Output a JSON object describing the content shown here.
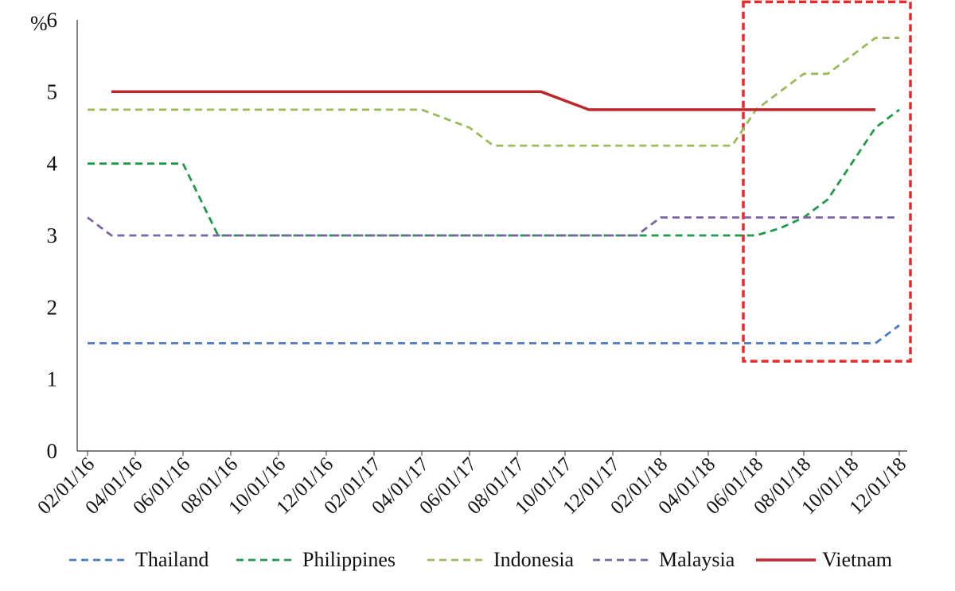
{
  "chart_data": {
    "type": "line",
    "unit_label": "%",
    "ylim": [
      0,
      6
    ],
    "y_ticks": [
      0,
      1,
      2,
      3,
      4,
      5,
      6
    ],
    "x_ticks": [
      "02/01/16",
      "04/01/16",
      "06/01/16",
      "08/01/16",
      "10/01/16",
      "12/01/16",
      "02/01/17",
      "04/01/17",
      "06/01/17",
      "08/01/17",
      "10/01/17",
      "12/01/17",
      "02/01/18",
      "04/01/18",
      "06/01/18",
      "08/01/18",
      "10/01/18",
      "12/01/18"
    ],
    "grid": false,
    "legend_position": "bottom",
    "highlight_box": {
      "x_from": "05/15/18",
      "x_to": "12/15/18",
      "y_from": 1.25,
      "y_to": 6.25,
      "color": "#e52b2b"
    },
    "series": [
      {
        "name": "Thailand",
        "color": "#4a7bbf",
        "style": "dashed",
        "points": [
          [
            "02/01/16",
            1.5
          ],
          [
            "11/01/18",
            1.5
          ],
          [
            "12/01/18",
            1.75
          ]
        ]
      },
      {
        "name": "Philippines",
        "color": "#1f9a4a",
        "style": "dashed",
        "points": [
          [
            "02/01/16",
            4.0
          ],
          [
            "06/01/16",
            4.0
          ],
          [
            "07/15/16",
            3.0
          ],
          [
            "06/01/18",
            3.0
          ],
          [
            "07/01/18",
            3.1
          ],
          [
            "08/01/18",
            3.25
          ],
          [
            "09/01/18",
            3.5
          ],
          [
            "10/01/18",
            4.0
          ],
          [
            "11/01/18",
            4.5
          ],
          [
            "12/01/18",
            4.75
          ]
        ]
      },
      {
        "name": "Indonesia",
        "color": "#9bbb59",
        "style": "dashed",
        "points": [
          [
            "02/01/16",
            4.75
          ],
          [
            "04/01/17",
            4.75
          ],
          [
            "06/01/17",
            4.5
          ],
          [
            "07/01/17",
            4.25
          ],
          [
            "05/01/18",
            4.25
          ],
          [
            "06/01/18",
            4.75
          ],
          [
            "08/01/18",
            5.25
          ],
          [
            "09/01/18",
            5.25
          ],
          [
            "11/01/18",
            5.75
          ],
          [
            "12/01/18",
            5.75
          ]
        ]
      },
      {
        "name": "Malaysia",
        "color": "#7b64a6",
        "style": "dashed",
        "points": [
          [
            "02/01/16",
            3.25
          ],
          [
            "03/01/16",
            3.0
          ],
          [
            "01/01/18",
            3.0
          ],
          [
            "02/01/18",
            3.25
          ],
          [
            "12/01/18",
            3.25
          ]
        ]
      },
      {
        "name": "Vietnam",
        "color": "#c0262d",
        "style": "solid",
        "points": [
          [
            "03/01/16",
            5.0
          ],
          [
            "09/01/17",
            5.0
          ],
          [
            "11/01/17",
            4.75
          ],
          [
            "11/01/18",
            4.75
          ]
        ]
      }
    ]
  }
}
